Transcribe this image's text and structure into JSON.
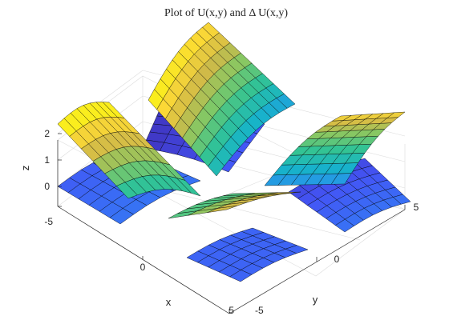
{
  "chart_data": {
    "type": "surface",
    "title": "Plot of U(x,y) and Δ U(x,y)",
    "xlabel": "x",
    "ylabel": "y",
    "zlabel": "z",
    "xlim": [
      -5,
      5
    ],
    "ylim": [
      -5,
      5
    ],
    "zlim": [
      -0.5,
      2.5
    ],
    "x_ticks": [
      "-5",
      "0",
      "5"
    ],
    "y_ticks": [
      "-5",
      "0",
      "5"
    ],
    "z_ticks": [
      "0",
      "1",
      "2"
    ],
    "grid": true,
    "colormap": "parula",
    "colormap_colors": [
      "#3e26a8",
      "#4355f5",
      "#2d8cf4",
      "#17b4c8",
      "#33c394",
      "#82c865",
      "#d0ba48",
      "#fbd836",
      "#f9fb0e"
    ]
  }
}
